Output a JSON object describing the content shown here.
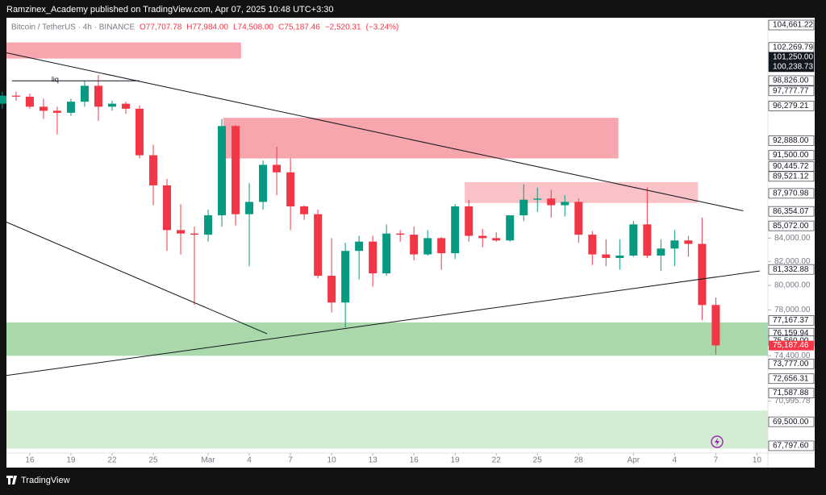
{
  "publish_note": "Ramzinex_Academy published on TradingView.com, Apr 07, 2025 10:48 UTC+3:30",
  "footer": {
    "brand": "TradingView"
  },
  "chart_data": {
    "type": "candlestick",
    "title": "Bitcoin / TetherUS · 4h · BINANCE",
    "legend_values": [
      {
        "value": 77707.78,
        "label": "O77,707.78"
      },
      {
        "value": 77984.0,
        "label": "H77,984.00"
      },
      {
        "value": 74508.0,
        "label": "L74,508.00"
      },
      {
        "value": 75187.46,
        "label": "C75,187.46"
      },
      {
        "value": -2520.31,
        "label": "−2,520.31"
      },
      {
        "value": -3.24,
        "label": "(−3.24%)"
      }
    ],
    "log_scale": true,
    "up_color": "#089981",
    "down_color": "#f23645",
    "xlim": [
      45.3,
      100.8
    ],
    "ylim": [
      67290,
      105450
    ],
    "xticks": [
      {
        "value": 47,
        "label": "16"
      },
      {
        "value": 50,
        "label": "19"
      },
      {
        "value": 53,
        "label": "22"
      },
      {
        "value": 56,
        "label": "25"
      },
      {
        "value": 60,
        "label": "Mar"
      },
      {
        "value": 63,
        "label": "4"
      },
      {
        "value": 66,
        "label": "7"
      },
      {
        "value": 69,
        "label": "10"
      },
      {
        "value": 72,
        "label": "13"
      },
      {
        "value": 75,
        "label": "16"
      },
      {
        "value": 78,
        "label": "19"
      },
      {
        "value": 81,
        "label": "22"
      },
      {
        "value": 84,
        "label": "25"
      },
      {
        "value": 87,
        "label": "28"
      },
      {
        "value": 91,
        "label": "Apr"
      },
      {
        "value": 94,
        "label": "4"
      },
      {
        "value": 97,
        "label": "7"
      },
      {
        "value": 100,
        "label": "10"
      }
    ],
    "yticks": [
      {
        "value": 84000,
        "label": "84,000.00"
      },
      {
        "value": 82000,
        "label": "82,000.00"
      },
      {
        "value": 80000,
        "label": "80,000.00"
      },
      {
        "value": 78000,
        "label": "78,000.00"
      },
      {
        "value": 74400,
        "label": "74,400.00"
      },
      {
        "value": 70995.78,
        "label": "70,995.78"
      }
    ],
    "levels": [
      {
        "value": 104661.22,
        "label": "104,661.22"
      },
      {
        "value": 102269.79,
        "label": "102,269.79"
      },
      {
        "value": 101250.0,
        "label": "101,250.00",
        "dark": true
      },
      {
        "value": 100238.73,
        "label": "100,238.73",
        "dark": true
      },
      {
        "value": 98826.0,
        "label": "98,826.00"
      },
      {
        "value": 97777.77,
        "label": "97,777.77"
      },
      {
        "value": 96279.21,
        "label": "96,279.21"
      },
      {
        "value": 92888.0,
        "label": "92,888.00"
      },
      {
        "value": 91500.0,
        "label": "91,500.00"
      },
      {
        "value": 90445.72,
        "label": "90,445.72"
      },
      {
        "value": 89521.12,
        "label": "89,521.12"
      },
      {
        "value": 87970.98,
        "label": "87,970.98"
      },
      {
        "value": 86354.07,
        "label": "86,354.07"
      },
      {
        "value": 85072.0,
        "label": "85,072.00"
      },
      {
        "value": 81332.88,
        "label": "81,332.88"
      },
      {
        "value": 77167.37,
        "label": "77,167.37"
      },
      {
        "value": 76159.94,
        "label": "76,159.94"
      },
      {
        "value": 75560.0,
        "label": "75,560.00"
      },
      {
        "value": 73777.0,
        "label": "73,777.00"
      },
      {
        "value": 72656.31,
        "label": "72,656.31"
      },
      {
        "value": 71587.88,
        "label": "71,587.88"
      },
      {
        "value": 69500.0,
        "label": "69,500.00"
      },
      {
        "value": 67797.6,
        "label": "67,797.60"
      }
    ],
    "last_price": {
      "value": 75187.46,
      "label": "75,187.46",
      "color": "#f23645"
    },
    "zones": [
      {
        "color": "#f7a6ad",
        "x": [
          45.3,
          62.4
        ],
        "y": [
          101100,
          102800
        ]
      },
      {
        "color": "#f7a6ad",
        "x": [
          61.1,
          89.9
        ],
        "y": [
          91200,
          95100
        ]
      },
      {
        "color": "#f9c2c7",
        "x": [
          78.7,
          95.7
        ],
        "y": [
          87100,
          89000
        ]
      },
      {
        "color": "#a9d8ab",
        "x": [
          45.3,
          100.8
        ],
        "y": [
          74400,
          77000
        ]
      },
      {
        "color": "#d4ebd4",
        "x": [
          45.3,
          100.8
        ],
        "y": [
          67600,
          70300
        ]
      }
    ],
    "trendlines": [
      {
        "x": [
          45.3,
          99.0
        ],
        "y": [
          101700,
          86400
        ]
      },
      {
        "x": [
          45.3,
          64.3
        ],
        "y": [
          85400,
          76100
        ]
      },
      {
        "x": [
          45.3,
          100.2
        ],
        "y": [
          72900,
          81200
        ]
      },
      {
        "x": [
          45.7,
          55.0
        ],
        "y": [
          98800,
          98800
        ],
        "label": "liq"
      }
    ],
    "x": [
      45,
      46,
      47,
      48,
      49,
      50,
      51,
      52,
      53,
      54,
      55,
      56,
      57,
      58,
      59,
      60,
      61,
      62,
      63,
      64,
      65,
      66,
      67,
      68,
      69,
      70,
      71,
      72,
      73,
      74,
      75,
      76,
      77,
      78,
      79,
      80,
      81,
      82,
      83,
      84,
      85,
      86,
      87,
      88,
      89,
      90,
      91,
      92,
      93,
      94,
      95,
      96,
      97
    ],
    "series": [
      {
        "name": "BTCUSDT",
        "values": [
          [
            96500,
            97700,
            96000,
            97300
          ],
          [
            97300,
            97700,
            96800,
            97200
          ],
          [
            97200,
            97500,
            96000,
            96200
          ],
          [
            96200,
            97000,
            95000,
            95800
          ],
          [
            95800,
            96200,
            93500,
            95600
          ],
          [
            95600,
            97000,
            95300,
            96700
          ],
          [
            96700,
            98800,
            96200,
            98300
          ],
          [
            98300,
            99400,
            94800,
            96200
          ],
          [
            96200,
            96800,
            95800,
            96500
          ],
          [
            96500,
            96700,
            95500,
            96000
          ],
          [
            96000,
            96300,
            91200,
            91500
          ],
          [
            91500,
            92500,
            86900,
            88700
          ],
          [
            88700,
            89300,
            82900,
            84700
          ],
          [
            84700,
            87000,
            82600,
            84400
          ],
          [
            84400,
            85000,
            78400,
            84300
          ],
          [
            84300,
            86500,
            83700,
            86000
          ],
          [
            86000,
            95000,
            85000,
            94300
          ],
          [
            94300,
            94400,
            85100,
            86100
          ],
          [
            86100,
            88900,
            81600,
            87200
          ],
          [
            87200,
            91000,
            86500,
            90600
          ],
          [
            90600,
            92300,
            87800,
            89900
          ],
          [
            89900,
            91200,
            84700,
            86800
          ],
          [
            86800,
            86900,
            85600,
            86100
          ],
          [
            86100,
            86500,
            80600,
            80800
          ],
          [
            80800,
            84000,
            77800,
            78600
          ],
          [
            78600,
            83600,
            76600,
            82900
          ],
          [
            82900,
            84200,
            80500,
            83700
          ],
          [
            83700,
            84200,
            79900,
            81000
          ],
          [
            81000,
            85200,
            80800,
            84400
          ],
          [
            84400,
            84700,
            83700,
            84300
          ],
          [
            84300,
            85000,
            82100,
            82600
          ],
          [
            82600,
            84700,
            82500,
            84000
          ],
          [
            84000,
            84100,
            81300,
            82700
          ],
          [
            82700,
            87000,
            82200,
            86800
          ],
          [
            86800,
            87400,
            83700,
            84200
          ],
          [
            84200,
            84800,
            83200,
            84000
          ],
          [
            84000,
            84500,
            83700,
            83800
          ],
          [
            83800,
            86000,
            83700,
            86000
          ],
          [
            86000,
            88800,
            85500,
            87400
          ],
          [
            87400,
            88500,
            86300,
            87500
          ],
          [
            87500,
            88300,
            85800,
            86900
          ],
          [
            86900,
            87800,
            85900,
            87200
          ],
          [
            87200,
            87500,
            83600,
            84300
          ],
          [
            84300,
            84600,
            81700,
            82600
          ],
          [
            82600,
            83900,
            81600,
            82300
          ],
          [
            82300,
            83900,
            81300,
            82500
          ],
          [
            82500,
            85500,
            82400,
            85200
          ],
          [
            85200,
            88500,
            82300,
            82500
          ],
          [
            82500,
            83900,
            81200,
            83100
          ],
          [
            83100,
            84700,
            81600,
            83800
          ],
          [
            83800,
            84200,
            82400,
            83500
          ],
          [
            83500,
            85800,
            77200,
            78400
          ],
          [
            78400,
            79000,
            74500,
            75200
          ]
        ]
      }
    ]
  }
}
